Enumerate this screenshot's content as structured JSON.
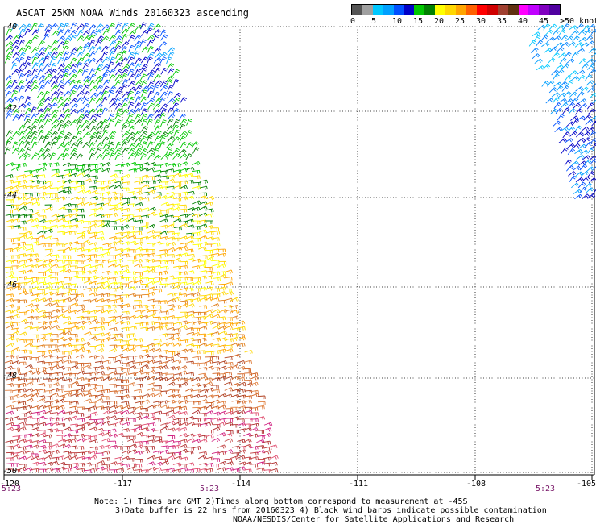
{
  "title": "ASCAT 25KM NOAA Winds 20160323 ascending",
  "legend": {
    "colors": [
      "#555555",
      "#a0a0a0",
      "#00c8ff",
      "#00a0ff",
      "#0050ff",
      "#0000c8",
      "#00c800",
      "#008000",
      "#ffff00",
      "#ffd700",
      "#ffa500",
      "#ff6000",
      "#ff0000",
      "#d00000",
      "#a04030",
      "#603010",
      "#ff00ff",
      "#c000ff",
      "#8000c0",
      "#5000a0"
    ],
    "ticks": [
      "0",
      "5",
      "10",
      "15",
      "20",
      "25",
      "30",
      "35",
      "40",
      "45",
      ">50 knots"
    ]
  },
  "axes": {
    "x_ticks": [
      "-120",
      "-117",
      "-114",
      "-111",
      "-108",
      "-105"
    ],
    "y_ticks": [
      "-40",
      "-42",
      "-44",
      "-46",
      "-48",
      "-50"
    ]
  },
  "times": [
    "5:23",
    "5:23",
    "5:23"
  ],
  "notes": {
    "line1": "Note: 1) Times are GMT 2)Times along bottom correspond to measurement at -45S",
    "line2": "3)Data buffer is 22 hrs from 20160323 4) Black wind barbs indicate possible contamination",
    "line3": "NOAA/NESDIS/Center for Satellite Applications and Research"
  }
}
